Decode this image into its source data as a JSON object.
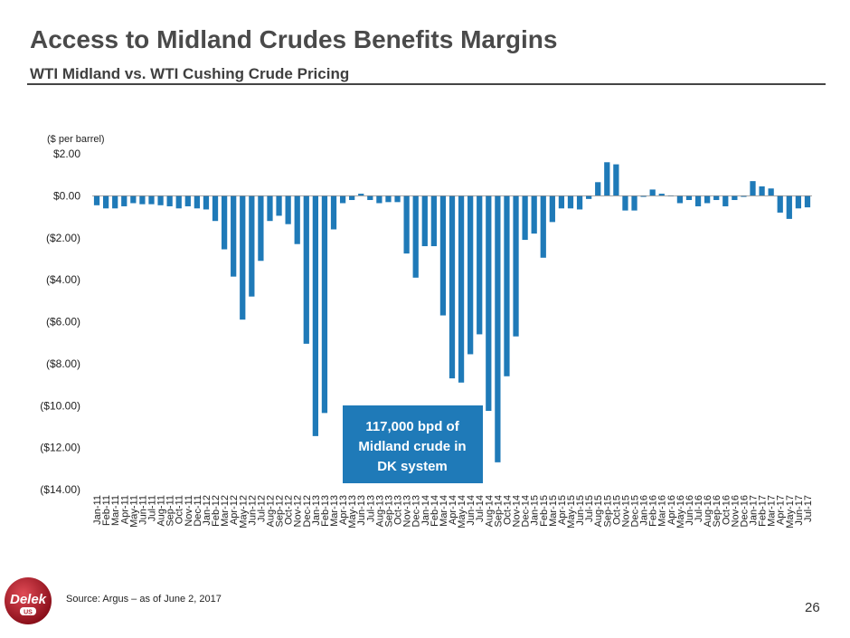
{
  "header": {
    "title": "Access to Midland Crudes Benefits Margins",
    "subtitle": "WTI Midland vs. WTI Cushing Crude Pricing"
  },
  "unit_label": "($ per barrel)",
  "source": "Source:  Argus – as of June 2, 2017",
  "page_number": "26",
  "logo_text": {
    "main": "Delek",
    "sub": "US"
  },
  "colors": {
    "bar": "#1f7ab8",
    "callout": "#1f7ab8",
    "logo": "#b01e2a"
  },
  "chart_data": {
    "type": "bar",
    "title": "",
    "xlabel": "",
    "ylabel": "($ per barrel)",
    "ylim": [
      -14,
      2
    ],
    "yticks": [
      2,
      0,
      -2,
      -4,
      -6,
      -8,
      -10,
      -12,
      -14
    ],
    "ytick_labels": [
      "$2.00",
      "$0.00",
      "($2.00)",
      "($4.00)",
      "($6.00)",
      "($8.00)",
      "($10.00)",
      "($12.00)",
      "($14.00)"
    ],
    "grid": false,
    "legend": "none",
    "categories": [
      "Jan-11",
      "Feb-11",
      "Mar-11",
      "Apr-11",
      "May-11",
      "Jun-11",
      "Jul-11",
      "Aug-11",
      "Sep-11",
      "Oct-11",
      "Nov-11",
      "Dec-11",
      "Jan-12",
      "Feb-12",
      "Mar-12",
      "Apr-12",
      "May-12",
      "Jun-12",
      "Jul-12",
      "Aug-12",
      "Sep-12",
      "Oct-12",
      "Nov-12",
      "Dec-12",
      "Jan-13",
      "Feb-13",
      "Mar-13",
      "Apr-13",
      "May-13",
      "Jun-13",
      "Jul-13",
      "Aug-13",
      "Sep-13",
      "Oct-13",
      "Nov-13",
      "Dec-13",
      "Jan-14",
      "Feb-14",
      "Mar-14",
      "Apr-14",
      "May-14",
      "Jun-14",
      "Jul-14",
      "Aug-14",
      "Sep-14",
      "Oct-14",
      "Nov-14",
      "Dec-14",
      "Jan-15",
      "Feb-15",
      "Mar-15",
      "Apr-15",
      "May-15",
      "Jun-15",
      "Jul-15",
      "Aug-15",
      "Sep-15",
      "Oct-15",
      "Nov-15",
      "Dec-15",
      "Jan-16",
      "Feb-16",
      "Mar-16",
      "Apr-16",
      "May-16",
      "Jun-16",
      "Jul-16",
      "Aug-16",
      "Sep-16",
      "Oct-16",
      "Nov-16",
      "Dec-16",
      "Jan-17",
      "Feb-17",
      "Mar-17",
      "Apr-17",
      "May-17",
      "Jun-17",
      "Jul-17"
    ],
    "values": [
      -0.45,
      -0.6,
      -0.6,
      -0.5,
      -0.35,
      -0.4,
      -0.4,
      -0.45,
      -0.5,
      -0.6,
      -0.5,
      -0.6,
      -0.65,
      -1.2,
      -2.55,
      -3.85,
      -5.9,
      -4.8,
      -3.1,
      -1.2,
      -0.95,
      -1.35,
      -2.3,
      -7.05,
      -11.45,
      -10.35,
      -1.6,
      -0.35,
      -0.2,
      0.1,
      -0.2,
      -0.35,
      -0.3,
      -0.3,
      -2.75,
      -3.9,
      -2.4,
      -2.4,
      -5.7,
      -8.7,
      -8.9,
      -7.55,
      -6.6,
      -10.25,
      -12.7,
      -8.6,
      -6.7,
      -2.1,
      -1.8,
      -2.95,
      -1.25,
      -0.6,
      -0.6,
      -0.65,
      -0.15,
      0.65,
      1.6,
      1.5,
      -0.7,
      -0.7,
      -0.05,
      0.3,
      0.1,
      0.0,
      -0.35,
      -0.2,
      -0.5,
      -0.35,
      -0.2,
      -0.5,
      -0.2,
      -0.05,
      0.7,
      0.45,
      0.35,
      -0.8,
      -1.1,
      -0.6,
      -0.55
    ],
    "annotations": [
      {
        "text_lines": [
          "117,000 bpd of",
          "Midland crude in",
          "DK system"
        ]
      }
    ]
  }
}
